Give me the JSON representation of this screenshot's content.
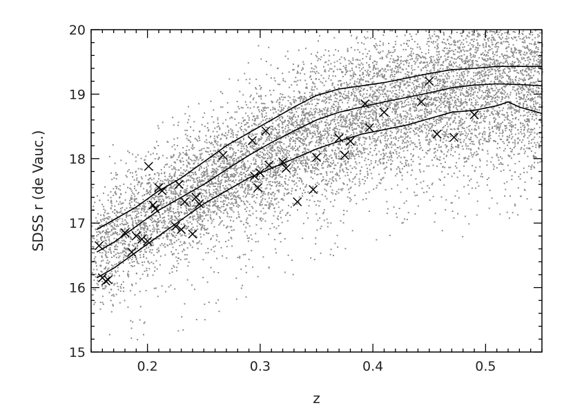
{
  "chart_data": {
    "type": "scatter",
    "title": "",
    "xlabel": "z",
    "ylabel": "SDSS r (de Vauc.)",
    "xlim": [
      0.15,
      0.55
    ],
    "ylim": [
      15,
      20
    ],
    "x_ticks": [
      {
        "value": 0.2,
        "label": "0.2"
      },
      {
        "value": 0.3,
        "label": "0.3"
      },
      {
        "value": 0.4,
        "label": "0.4"
      },
      {
        "value": 0.5,
        "label": "0.5"
      }
    ],
    "y_ticks": [
      {
        "value": 15,
        "label": "15"
      },
      {
        "value": 16,
        "label": "16"
      },
      {
        "value": 17,
        "label": "17"
      },
      {
        "value": 18,
        "label": "18"
      },
      {
        "value": 19,
        "label": "19"
      },
      {
        "value": 20,
        "label": "20"
      }
    ],
    "grid": false,
    "colors": {
      "points": "#8c8c8c",
      "lines": "#000000",
      "markers": "#000000",
      "frame": "#000000"
    },
    "series": [
      {
        "kind": "density-scatter",
        "ridge": [
          {
            "x": 0.15,
            "y": 16.6
          },
          {
            "x": 0.2,
            "y": 17.1
          },
          {
            "x": 0.25,
            "y": 17.6
          },
          {
            "x": 0.3,
            "y": 18.05
          },
          {
            "x": 0.35,
            "y": 18.5
          },
          {
            "x": 0.4,
            "y": 18.75
          },
          {
            "x": 0.45,
            "y": 18.95
          },
          {
            "x": 0.5,
            "y": 19.1
          },
          {
            "x": 0.55,
            "y": 19.15
          }
        ]
      },
      {
        "kind": "line",
        "points": [
          {
            "x": 0.155,
            "y": 16.9
          },
          {
            "x": 0.17,
            "y": 17.05
          },
          {
            "x": 0.19,
            "y": 17.25
          },
          {
            "x": 0.21,
            "y": 17.5
          },
          {
            "x": 0.23,
            "y": 17.7
          },
          {
            "x": 0.25,
            "y": 17.95
          },
          {
            "x": 0.27,
            "y": 18.2
          },
          {
            "x": 0.29,
            "y": 18.4
          },
          {
            "x": 0.31,
            "y": 18.6
          },
          {
            "x": 0.33,
            "y": 18.8
          },
          {
            "x": 0.35,
            "y": 18.98
          },
          {
            "x": 0.37,
            "y": 19.08
          },
          {
            "x": 0.39,
            "y": 19.13
          },
          {
            "x": 0.41,
            "y": 19.18
          },
          {
            "x": 0.43,
            "y": 19.25
          },
          {
            "x": 0.45,
            "y": 19.32
          },
          {
            "x": 0.47,
            "y": 19.38
          },
          {
            "x": 0.49,
            "y": 19.4
          },
          {
            "x": 0.51,
            "y": 19.43
          },
          {
            "x": 0.53,
            "y": 19.43
          },
          {
            "x": 0.55,
            "y": 19.43
          }
        ]
      },
      {
        "kind": "line",
        "points": [
          {
            "x": 0.155,
            "y": 16.55
          },
          {
            "x": 0.17,
            "y": 16.7
          },
          {
            "x": 0.19,
            "y": 16.95
          },
          {
            "x": 0.21,
            "y": 17.2
          },
          {
            "x": 0.23,
            "y": 17.4
          },
          {
            "x": 0.25,
            "y": 17.6
          },
          {
            "x": 0.27,
            "y": 17.83
          },
          {
            "x": 0.29,
            "y": 18.05
          },
          {
            "x": 0.31,
            "y": 18.25
          },
          {
            "x": 0.33,
            "y": 18.43
          },
          {
            "x": 0.35,
            "y": 18.6
          },
          {
            "x": 0.37,
            "y": 18.72
          },
          {
            "x": 0.39,
            "y": 18.8
          },
          {
            "x": 0.41,
            "y": 18.88
          },
          {
            "x": 0.43,
            "y": 18.95
          },
          {
            "x": 0.45,
            "y": 19.02
          },
          {
            "x": 0.47,
            "y": 19.1
          },
          {
            "x": 0.49,
            "y": 19.14
          },
          {
            "x": 0.51,
            "y": 19.16
          },
          {
            "x": 0.53,
            "y": 19.15
          },
          {
            "x": 0.55,
            "y": 19.13
          }
        ]
      },
      {
        "kind": "line",
        "points": [
          {
            "x": 0.155,
            "y": 16.15
          },
          {
            "x": 0.17,
            "y": 16.3
          },
          {
            "x": 0.19,
            "y": 16.55
          },
          {
            "x": 0.21,
            "y": 16.8
          },
          {
            "x": 0.23,
            "y": 17.05
          },
          {
            "x": 0.25,
            "y": 17.3
          },
          {
            "x": 0.27,
            "y": 17.5
          },
          {
            "x": 0.29,
            "y": 17.7
          },
          {
            "x": 0.31,
            "y": 17.85
          },
          {
            "x": 0.33,
            "y": 18.0
          },
          {
            "x": 0.35,
            "y": 18.15
          },
          {
            "x": 0.37,
            "y": 18.27
          },
          {
            "x": 0.39,
            "y": 18.38
          },
          {
            "x": 0.41,
            "y": 18.45
          },
          {
            "x": 0.43,
            "y": 18.52
          },
          {
            "x": 0.45,
            "y": 18.62
          },
          {
            "x": 0.47,
            "y": 18.72
          },
          {
            "x": 0.49,
            "y": 18.75
          },
          {
            "x": 0.51,
            "y": 18.82
          },
          {
            "x": 0.52,
            "y": 18.88
          },
          {
            "x": 0.53,
            "y": 18.8
          },
          {
            "x": 0.54,
            "y": 18.75
          },
          {
            "x": 0.55,
            "y": 18.7
          }
        ]
      },
      {
        "kind": "markers",
        "marker": "x",
        "points": [
          {
            "x": 0.157,
            "y": 16.65
          },
          {
            "x": 0.16,
            "y": 16.15
          },
          {
            "x": 0.163,
            "y": 16.1
          },
          {
            "x": 0.165,
            "y": 16.12
          },
          {
            "x": 0.18,
            "y": 16.85
          },
          {
            "x": 0.186,
            "y": 16.55
          },
          {
            "x": 0.19,
            "y": 16.8
          },
          {
            "x": 0.195,
            "y": 16.75
          },
          {
            "x": 0.2,
            "y": 16.72
          },
          {
            "x": 0.201,
            "y": 17.88
          },
          {
            "x": 0.205,
            "y": 17.28
          },
          {
            "x": 0.207,
            "y": 17.22
          },
          {
            "x": 0.21,
            "y": 17.55
          },
          {
            "x": 0.213,
            "y": 17.5
          },
          {
            "x": 0.225,
            "y": 16.95
          },
          {
            "x": 0.228,
            "y": 17.6
          },
          {
            "x": 0.23,
            "y": 16.9
          },
          {
            "x": 0.233,
            "y": 17.33
          },
          {
            "x": 0.24,
            "y": 16.83
          },
          {
            "x": 0.243,
            "y": 17.4
          },
          {
            "x": 0.246,
            "y": 17.3
          },
          {
            "x": 0.267,
            "y": 18.05
          },
          {
            "x": 0.293,
            "y": 18.28
          },
          {
            "x": 0.295,
            "y": 17.73
          },
          {
            "x": 0.298,
            "y": 17.55
          },
          {
            "x": 0.3,
            "y": 17.78
          },
          {
            "x": 0.305,
            "y": 18.43
          },
          {
            "x": 0.308,
            "y": 17.9
          },
          {
            "x": 0.32,
            "y": 17.95
          },
          {
            "x": 0.323,
            "y": 17.85
          },
          {
            "x": 0.333,
            "y": 17.33
          },
          {
            "x": 0.347,
            "y": 17.52
          },
          {
            "x": 0.35,
            "y": 18.02
          },
          {
            "x": 0.37,
            "y": 18.32
          },
          {
            "x": 0.375,
            "y": 18.05
          },
          {
            "x": 0.38,
            "y": 18.27
          },
          {
            "x": 0.393,
            "y": 18.85
          },
          {
            "x": 0.397,
            "y": 18.48
          },
          {
            "x": 0.41,
            "y": 18.72
          },
          {
            "x": 0.443,
            "y": 18.88
          },
          {
            "x": 0.45,
            "y": 19.2
          },
          {
            "x": 0.457,
            "y": 18.38
          },
          {
            "x": 0.472,
            "y": 18.33
          },
          {
            "x": 0.49,
            "y": 18.68
          }
        ]
      }
    ]
  }
}
